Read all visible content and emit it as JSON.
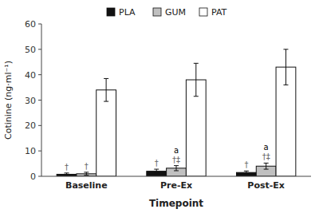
{
  "chart_data": {
    "type": "bar",
    "categories": [
      "Baseline",
      "Pre-Ex",
      "Post-Ex"
    ],
    "series": [
      {
        "name": "PLA",
        "color": "#111111",
        "values": [
          0.8,
          2.0,
          1.5
        ],
        "errors": [
          0.5,
          0.8,
          0.6
        ]
      },
      {
        "name": "GUM",
        "color": "#c0c0c0",
        "values": [
          1.0,
          3.2,
          4.0
        ],
        "errors": [
          0.6,
          1.0,
          1.2
        ]
      },
      {
        "name": "PAT",
        "color": "#ffffff",
        "values": [
          34.0,
          38.0,
          43.0
        ],
        "errors": [
          4.5,
          6.5,
          7.0
        ]
      }
    ],
    "xlabel": "Timepoint",
    "ylabel": "Cotinine (ng·ml⁻¹)",
    "ylim": [
      0,
      60
    ],
    "yticks": [
      0,
      10,
      20,
      30,
      40,
      50,
      60
    ],
    "grid": false,
    "legend": "top",
    "annotations": [
      {
        "text": "†",
        "category": "Baseline",
        "series": "PLA",
        "color": "#666666"
      },
      {
        "text": "†",
        "category": "Baseline",
        "series": "GUM",
        "color": "#666666"
      },
      {
        "text": "†",
        "category": "Pre-Ex",
        "series": "PLA",
        "color": "#666666"
      },
      {
        "text": "†‡",
        "category": "Pre-Ex",
        "series": "GUM",
        "color": "#666666"
      },
      {
        "text": "a",
        "category": "Pre-Ex",
        "series": "GUM",
        "color": "#000000"
      },
      {
        "text": "†",
        "category": "Post-Ex",
        "series": "PLA",
        "color": "#666666"
      },
      {
        "text": "†‡",
        "category": "Post-Ex",
        "series": "GUM",
        "color": "#666666"
      },
      {
        "text": "a",
        "category": "Post-Ex",
        "series": "GUM",
        "color": "#000000"
      }
    ]
  }
}
